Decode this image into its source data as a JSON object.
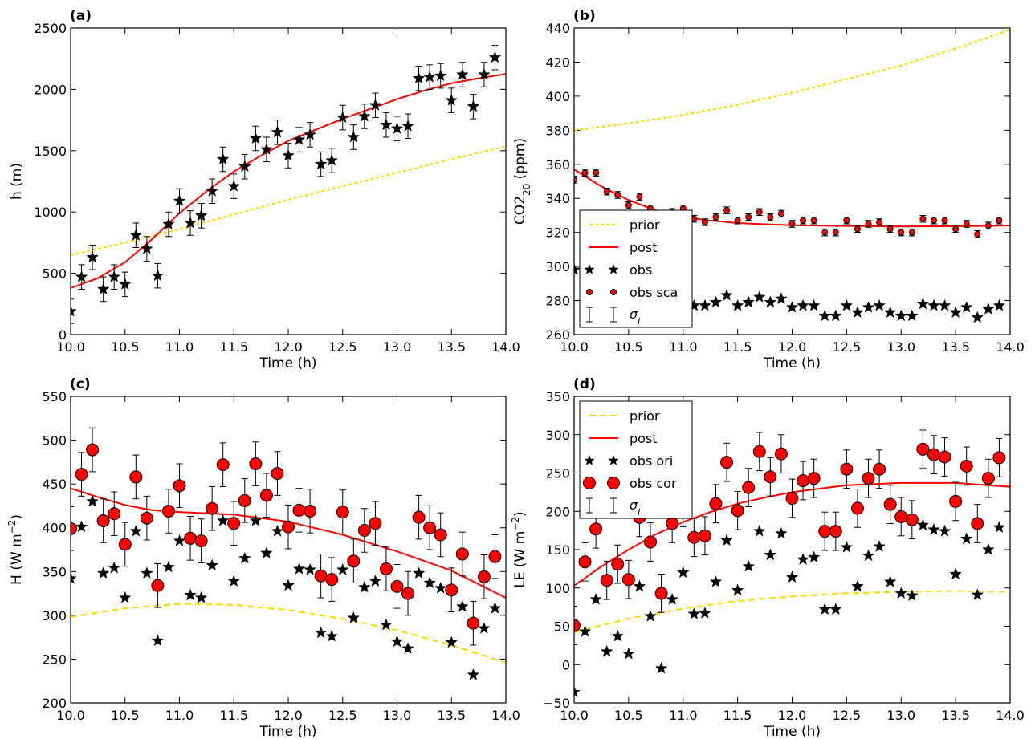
{
  "chart_data": [
    {
      "type": "scatter",
      "panel_label": "(a)",
      "xlabel": "Time (h)",
      "ylabel": "h (m)",
      "xlim": [
        10.0,
        14.0
      ],
      "ylim": [
        0,
        2500
      ],
      "xticks": [
        10.0,
        10.5,
        11.0,
        11.5,
        12.0,
        12.5,
        13.0,
        13.5,
        14.0
      ],
      "yticks": [
        0,
        500,
        1000,
        1500,
        2000,
        2500
      ],
      "legend": null,
      "series": [
        {
          "key": "prior",
          "style": "dashed-line",
          "color": "#FFD700",
          "x": [
            10.0,
            10.5,
            11.0,
            11.5,
            12.0,
            12.5,
            13.0,
            13.5,
            14.0
          ],
          "y": [
            650,
            750,
            860,
            980,
            1100,
            1210,
            1320,
            1430,
            1535
          ]
        },
        {
          "key": "post",
          "style": "solid-line",
          "color": "#FF0000",
          "x": [
            10.0,
            10.25,
            10.5,
            10.75,
            11.0,
            11.25,
            11.5,
            11.75,
            12.0,
            12.25,
            12.5,
            12.75,
            13.0,
            13.25,
            13.5,
            13.75,
            14.0
          ],
          "y": [
            380,
            460,
            590,
            780,
            990,
            1170,
            1330,
            1460,
            1580,
            1670,
            1760,
            1840,
            1920,
            1990,
            2050,
            2090,
            2125
          ]
        },
        {
          "key": "obs",
          "style": "star-errorbar",
          "color": "#000000",
          "x": [
            10.0,
            10.1,
            10.2,
            10.3,
            10.4,
            10.5,
            10.6,
            10.7,
            10.8,
            10.9,
            11.0,
            11.1,
            11.2,
            11.3,
            11.4,
            11.5,
            11.6,
            11.7,
            11.8,
            11.9,
            12.0,
            12.1,
            12.2,
            12.3,
            12.4,
            12.5,
            12.6,
            12.7,
            12.8,
            12.9,
            13.0,
            13.1,
            13.2,
            13.3,
            13.4,
            13.5,
            13.6,
            13.7,
            13.8,
            13.9
          ],
          "y": [
            190,
            470,
            630,
            370,
            470,
            410,
            810,
            700,
            480,
            900,
            1090,
            910,
            970,
            1170,
            1430,
            1210,
            1370,
            1600,
            1510,
            1650,
            1460,
            1590,
            1630,
            1390,
            1420,
            1770,
            1610,
            1780,
            1870,
            1710,
            1680,
            1700,
            2090,
            2100,
            2110,
            1910,
            2120,
            1860,
            2120,
            2260
          ],
          "err": 100
        }
      ]
    },
    {
      "type": "scatter",
      "panel_label": "(b)",
      "xlabel": "Time (h)",
      "ylabel": "CO2",
      "ylabel_sub": "20",
      "ylabel_unit": " (ppm)",
      "xlim": [
        10.0,
        14.0
      ],
      "ylim": [
        260,
        440
      ],
      "xticks": [
        10.0,
        10.5,
        11.0,
        11.5,
        12.0,
        12.5,
        13.0,
        13.5,
        14.0
      ],
      "yticks": [
        260,
        280,
        300,
        320,
        340,
        360,
        380,
        400,
        420,
        440
      ],
      "legend": {
        "position": "lower-left",
        "entries": [
          "prior",
          "post",
          "obs",
          "obs sca",
          "σ_I"
        ]
      },
      "series": [
        {
          "key": "prior",
          "name": "prior",
          "style": "dashed-line",
          "color": "#FFD700",
          "x": [
            10.0,
            10.5,
            11.0,
            11.5,
            12.0,
            12.5,
            13.0,
            13.5,
            14.0
          ],
          "y": [
            380,
            384,
            389,
            395,
            402,
            410,
            418,
            428,
            439
          ]
        },
        {
          "key": "post",
          "name": "post",
          "style": "solid-line",
          "color": "#FF0000",
          "x": [
            10.0,
            10.25,
            10.5,
            10.75,
            11.0,
            11.25,
            11.5,
            11.75,
            12.0,
            12.5,
            13.0,
            13.5,
            14.0
          ],
          "y": [
            357,
            347,
            339,
            333,
            329,
            327,
            325.5,
            324.8,
            324.2,
            323.8,
            323.5,
            323.6,
            324
          ]
        },
        {
          "key": "obs",
          "name": "obs",
          "style": "star",
          "color": "#000000",
          "x": [
            10.0,
            10.1,
            10.2,
            10.3,
            10.4,
            10.5,
            10.6,
            10.7,
            10.8,
            10.9,
            11.0,
            11.1,
            11.2,
            11.3,
            11.4,
            11.5,
            11.6,
            11.7,
            11.8,
            11.9,
            12.0,
            12.1,
            12.2,
            12.3,
            12.4,
            12.5,
            12.6,
            12.7,
            12.8,
            12.9,
            13.0,
            13.1,
            13.2,
            13.3,
            13.4,
            13.5,
            13.6,
            13.7,
            13.8,
            13.9
          ],
          "y": [
            298,
            301,
            300,
            290,
            288,
            286,
            292,
            281,
            280,
            279,
            279,
            277,
            277,
            279,
            283,
            277,
            279,
            282,
            279,
            281,
            276,
            277,
            277,
            271,
            271,
            277,
            273,
            276,
            277,
            273,
            271,
            271,
            278,
            277,
            277,
            273,
            276,
            270,
            275,
            277
          ]
        },
        {
          "key": "obs_sca",
          "name": "obs sca",
          "style": "circle-errorbar-small",
          "color": "#FF0000",
          "x": [
            10.0,
            10.1,
            10.2,
            10.3,
            10.4,
            10.5,
            10.6,
            10.7,
            10.8,
            10.9,
            11.0,
            11.1,
            11.2,
            11.3,
            11.4,
            11.5,
            11.6,
            11.7,
            11.8,
            11.9,
            12.0,
            12.1,
            12.2,
            12.3,
            12.4,
            12.5,
            12.6,
            12.7,
            12.8,
            12.9,
            13.0,
            13.1,
            13.2,
            13.3,
            13.4,
            13.5,
            13.6,
            13.7,
            13.8,
            13.9
          ],
          "y": [
            351,
            355,
            355,
            344,
            342,
            336,
            341,
            334,
            331,
            332,
            334,
            328,
            326,
            329,
            333,
            327,
            329,
            332,
            329,
            331,
            325,
            327,
            327,
            320,
            320,
            327,
            322,
            325,
            326,
            322,
            320,
            320,
            328,
            327,
            327,
            322,
            325,
            319,
            324,
            327
          ],
          "err": 2
        },
        {
          "key": "sigma",
          "name": "σ_I",
          "style": "errorbar-only",
          "color": "#000000"
        }
      ]
    },
    {
      "type": "scatter",
      "panel_label": "(c)",
      "xlabel": "Time (h)",
      "ylabel": "H (W m",
      "ylabel_sup": "−2",
      "ylabel_unit": ")",
      "xlim": [
        10.0,
        14.0
      ],
      "ylim": [
        200,
        550
      ],
      "xticks": [
        10.0,
        10.5,
        11.0,
        11.5,
        12.0,
        12.5,
        13.0,
        13.5,
        14.0
      ],
      "yticks": [
        200,
        250,
        300,
        350,
        400,
        450,
        500,
        550
      ],
      "legend": null,
      "series": [
        {
          "key": "prior",
          "style": "dashed-line",
          "color": "#FFD700",
          "x": [
            10.0,
            10.5,
            11.0,
            11.5,
            12.0,
            12.5,
            13.0,
            13.5,
            14.0
          ],
          "y": [
            298,
            308,
            313,
            312,
            306,
            296,
            283,
            266,
            246
          ]
        },
        {
          "key": "post",
          "style": "solid-line",
          "color": "#FF0000",
          "x": [
            10.0,
            10.25,
            10.5,
            10.75,
            11.0,
            11.5,
            12.0,
            12.5,
            13.0,
            13.5,
            14.0
          ],
          "y": [
            445,
            435,
            426,
            420,
            418,
            415,
            407,
            392,
            373,
            351,
            320
          ]
        },
        {
          "key": "obs_ori",
          "style": "star",
          "color": "#000000",
          "x": [
            10.0,
            10.1,
            10.2,
            10.3,
            10.4,
            10.5,
            10.6,
            10.7,
            10.8,
            10.9,
            11.0,
            11.1,
            11.2,
            11.3,
            11.4,
            11.5,
            11.6,
            11.7,
            11.8,
            11.9,
            12.0,
            12.1,
            12.2,
            12.3,
            12.4,
            12.5,
            12.6,
            12.7,
            12.8,
            12.9,
            13.0,
            13.1,
            13.2,
            13.3,
            13.4,
            13.5,
            13.6,
            13.7,
            13.8,
            13.9
          ],
          "y": [
            342,
            401,
            430,
            348,
            354,
            320,
            396,
            348,
            271,
            355,
            385,
            323,
            320,
            357,
            408,
            339,
            365,
            408,
            371,
            396,
            334,
            353,
            352,
            280,
            276,
            352,
            297,
            332,
            339,
            289,
            270,
            262,
            348,
            337,
            331,
            269,
            310,
            232,
            285,
            308
          ]
        },
        {
          "key": "obs_cor",
          "style": "circle-errorbar",
          "color": "#FF0000",
          "x": [
            10.0,
            10.1,
            10.2,
            10.3,
            10.4,
            10.5,
            10.6,
            10.7,
            10.8,
            10.9,
            11.0,
            11.1,
            11.2,
            11.3,
            11.4,
            11.5,
            11.6,
            11.7,
            11.8,
            11.9,
            12.0,
            12.1,
            12.2,
            12.3,
            12.4,
            12.5,
            12.6,
            12.7,
            12.8,
            12.9,
            13.0,
            13.1,
            13.2,
            13.3,
            13.4,
            13.5,
            13.6,
            13.7,
            13.8,
            13.9
          ],
          "y": [
            399,
            461,
            489,
            408,
            416,
            381,
            458,
            411,
            334,
            419,
            448,
            388,
            385,
            422,
            472,
            405,
            431,
            473,
            437,
            462,
            401,
            420,
            419,
            345,
            341,
            418,
            362,
            397,
            405,
            353,
            333,
            325,
            412,
            400,
            392,
            329,
            370,
            291,
            344,
            367
          ],
          "err": 25
        }
      ]
    },
    {
      "type": "scatter",
      "panel_label": "(d)",
      "xlabel": "Time (h)",
      "ylabel": "LE (W m",
      "ylabel_sup": "−2",
      "ylabel_unit": ")",
      "xlim": [
        10.0,
        14.0
      ],
      "ylim": [
        -50,
        350
      ],
      "xticks": [
        10.0,
        10.5,
        11.0,
        11.5,
        12.0,
        12.5,
        13.0,
        13.5,
        14.0
      ],
      "yticks": [
        -50,
        0,
        50,
        100,
        150,
        200,
        250,
        300,
        350
      ],
      "legend": {
        "position": "upper-left",
        "entries": [
          "prior",
          "post",
          "obs ori",
          "obs cor",
          "σ_I"
        ]
      },
      "series": [
        {
          "key": "prior",
          "name": "prior",
          "style": "dashed-line",
          "color": "#FFD700",
          "x": [
            10.0,
            10.5,
            11.0,
            11.5,
            12.0,
            12.5,
            13.0,
            13.5,
            14.0
          ],
          "y": [
            42,
            60,
            73,
            83,
            89,
            93,
            95,
            96,
            95
          ]
        },
        {
          "key": "post",
          "name": "post",
          "style": "solid-line",
          "color": "#FF0000",
          "x": [
            10.0,
            10.25,
            10.5,
            10.75,
            11.0,
            11.25,
            11.5,
            11.75,
            12.0,
            12.5,
            13.0,
            13.5,
            14.0
          ],
          "y": [
            103,
            128,
            150,
            170,
            186,
            199,
            210,
            218,
            225,
            234,
            237,
            237,
            232
          ]
        },
        {
          "key": "obs_ori",
          "name": "obs ori",
          "style": "star",
          "color": "#000000",
          "x": [
            10.0,
            10.1,
            10.2,
            10.3,
            10.4,
            10.5,
            10.6,
            10.7,
            10.8,
            10.9,
            11.0,
            11.1,
            11.2,
            11.3,
            11.4,
            11.5,
            11.6,
            11.7,
            11.8,
            11.9,
            12.0,
            12.1,
            12.2,
            12.3,
            12.4,
            12.5,
            12.6,
            12.7,
            12.8,
            12.9,
            13.0,
            13.1,
            13.2,
            13.3,
            13.4,
            13.5,
            13.6,
            13.7,
            13.8,
            13.9
          ],
          "y": [
            -36,
            43,
            85,
            17,
            37,
            14,
            102,
            63,
            -5,
            85,
            120,
            66,
            67,
            108,
            162,
            97,
            128,
            174,
            143,
            171,
            114,
            137,
            140,
            72,
            72,
            153,
            102,
            142,
            154,
            108,
            93,
            90,
            182,
            176,
            174,
            118,
            164,
            91,
            150,
            179
          ]
        },
        {
          "key": "obs_cor",
          "name": "obs cor",
          "style": "circle-errorbar",
          "color": "#FF0000",
          "x": [
            10.0,
            10.1,
            10.2,
            10.3,
            10.4,
            10.5,
            10.6,
            10.7,
            10.8,
            10.9,
            11.0,
            11.1,
            11.2,
            11.3,
            11.4,
            11.5,
            11.6,
            11.7,
            11.8,
            11.9,
            12.0,
            12.1,
            12.2,
            12.3,
            12.4,
            12.5,
            12.6,
            12.7,
            12.8,
            12.9,
            13.0,
            13.1,
            13.2,
            13.3,
            13.4,
            13.5,
            13.6,
            13.7,
            13.8,
            13.9
          ],
          "y": [
            51,
            134,
            177,
            110,
            131,
            111,
            192,
            160,
            93,
            184,
            205,
            166,
            168,
            210,
            264,
            201,
            231,
            278,
            245,
            275,
            217,
            240,
            243,
            174,
            174,
            255,
            204,
            243,
            255,
            209,
            193,
            189,
            281,
            274,
            271,
            213,
            259,
            184,
            243,
            270
          ],
          "err": 25
        },
        {
          "key": "sigma",
          "name": "σ_I",
          "style": "errorbar-only",
          "color": "#000000"
        }
      ]
    }
  ]
}
